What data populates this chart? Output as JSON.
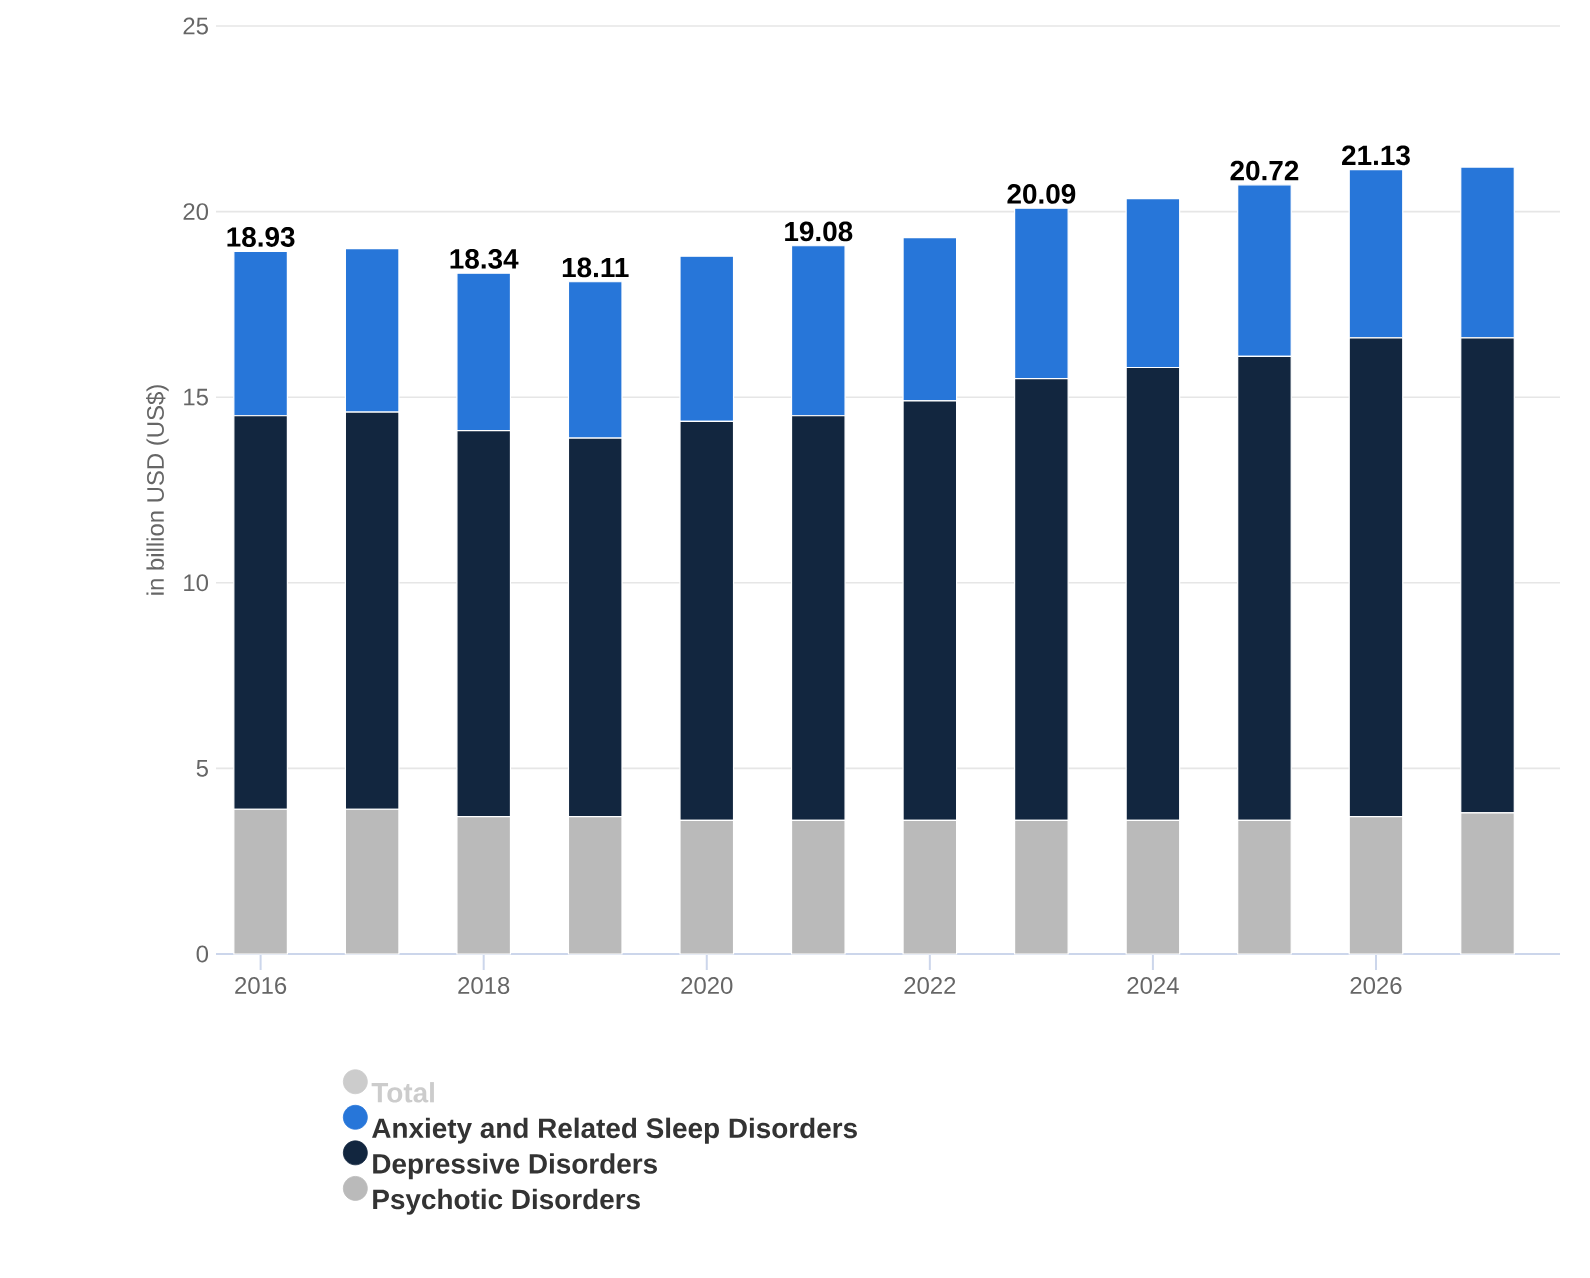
{
  "chart_data": {
    "type": "bar",
    "stacked": true,
    "ylabel": "in billion USD (US$)",
    "x": [
      2016,
      2017,
      2018,
      2019,
      2020,
      2021,
      2022,
      2023,
      2024,
      2025,
      2026,
      2027
    ],
    "xlim": [
      2015.6,
      2027.65
    ],
    "xticks": [
      2016,
      2018,
      2020,
      2022,
      2024,
      2026
    ],
    "ylim": [
      0,
      25
    ],
    "yticks": [
      0,
      5,
      10,
      15,
      20,
      25
    ],
    "grid": "y",
    "legend": "bottom",
    "series": [
      {
        "name": "Psychotic Disorders",
        "color": "#bababa",
        "values": [
          3.9,
          3.9,
          3.7,
          3.7,
          3.6,
          3.6,
          3.6,
          3.6,
          3.6,
          3.6,
          3.7,
          3.8
        ]
      },
      {
        "name": "Depressive Disorders",
        "color": "#12263f",
        "values": [
          10.6,
          10.7,
          10.4,
          10.2,
          10.75,
          10.9,
          11.3,
          11.9,
          12.2,
          12.5,
          12.9,
          12.8
        ]
      },
      {
        "name": "Anxiety and Related Sleep Disorders",
        "color": "#2776d9",
        "values": [
          4.43,
          4.4,
          4.24,
          4.21,
          4.45,
          4.58,
          4.4,
          4.59,
          4.55,
          4.62,
          4.53,
          4.6
        ]
      },
      {
        "name": "Total",
        "color": "#cccccc",
        "values": [
          null,
          null,
          null,
          null,
          null,
          null,
          null,
          null,
          null,
          null,
          null,
          null
        ]
      }
    ],
    "totals": [
      "18.93",
      null,
      "18.34",
      "18.11",
      null,
      "19.08",
      null,
      "20.09",
      null,
      "20.72",
      "21.13",
      null
    ]
  }
}
